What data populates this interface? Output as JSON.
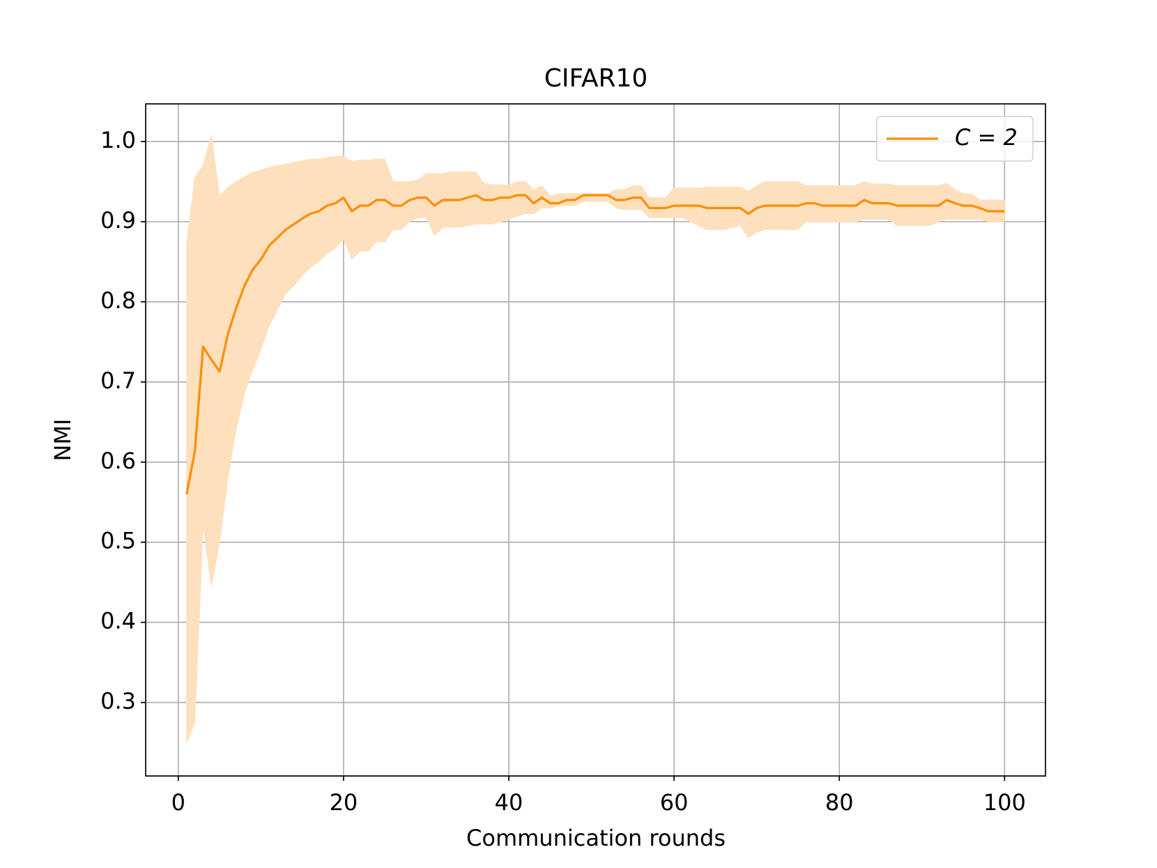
{
  "chart_data": {
    "type": "line",
    "title": "CIFAR10",
    "x_label": "Communication rounds",
    "y_label": "NMI",
    "x": [
      1,
      2,
      3,
      4,
      5,
      6,
      7,
      8,
      9,
      10,
      11,
      12,
      13,
      14,
      15,
      16,
      17,
      18,
      19,
      20,
      21,
      22,
      23,
      24,
      25,
      26,
      27,
      28,
      29,
      30,
      31,
      32,
      33,
      34,
      35,
      36,
      37,
      38,
      39,
      40,
      41,
      42,
      43,
      44,
      45,
      46,
      47,
      48,
      49,
      50,
      51,
      52,
      53,
      54,
      55,
      56,
      57,
      58,
      59,
      60,
      61,
      62,
      63,
      64,
      65,
      66,
      67,
      68,
      69,
      70,
      71,
      72,
      73,
      74,
      75,
      76,
      77,
      78,
      79,
      80,
      81,
      82,
      83,
      84,
      85,
      86,
      87,
      88,
      89,
      90,
      91,
      92,
      93,
      94,
      95,
      96,
      97,
      98,
      99,
      100
    ],
    "series": [
      {
        "name": "C = 2",
        "color": "#ff8c00",
        "band_color": "#ffe0bd",
        "values": [
          0.56,
          0.613,
          0.744,
          0.728,
          0.713,
          0.76,
          0.792,
          0.82,
          0.84,
          0.853,
          0.87,
          0.88,
          0.89,
          0.897,
          0.904,
          0.91,
          0.913,
          0.92,
          0.923,
          0.93,
          0.913,
          0.92,
          0.92,
          0.927,
          0.927,
          0.92,
          0.92,
          0.927,
          0.93,
          0.93,
          0.92,
          0.927,
          0.927,
          0.927,
          0.93,
          0.933,
          0.927,
          0.927,
          0.93,
          0.93,
          0.933,
          0.933,
          0.923,
          0.93,
          0.923,
          0.923,
          0.927,
          0.927,
          0.933,
          0.933,
          0.933,
          0.933,
          0.927,
          0.927,
          0.93,
          0.93,
          0.917,
          0.917,
          0.917,
          0.92,
          0.92,
          0.92,
          0.92,
          0.917,
          0.917,
          0.917,
          0.917,
          0.917,
          0.91,
          0.917,
          0.92,
          0.92,
          0.92,
          0.92,
          0.92,
          0.923,
          0.923,
          0.92,
          0.92,
          0.92,
          0.92,
          0.92,
          0.927,
          0.923,
          0.923,
          0.923,
          0.92,
          0.92,
          0.92,
          0.92,
          0.92,
          0.92,
          0.927,
          0.923,
          0.92,
          0.92,
          0.917,
          0.913,
          0.913,
          0.913
        ],
        "lower": [
          0.25,
          0.275,
          0.52,
          0.445,
          0.5,
          0.58,
          0.64,
          0.685,
          0.715,
          0.74,
          0.77,
          0.79,
          0.81,
          0.82,
          0.833,
          0.843,
          0.85,
          0.86,
          0.867,
          0.878,
          0.853,
          0.863,
          0.863,
          0.875,
          0.875,
          0.89,
          0.89,
          0.9,
          0.905,
          0.905,
          0.883,
          0.893,
          0.893,
          0.893,
          0.895,
          0.897,
          0.897,
          0.897,
          0.9,
          0.903,
          0.907,
          0.91,
          0.91,
          0.917,
          0.917,
          0.92,
          0.92,
          0.92,
          0.925,
          0.925,
          0.925,
          0.925,
          0.917,
          0.915,
          0.915,
          0.915,
          0.905,
          0.905,
          0.905,
          0.905,
          0.905,
          0.9,
          0.895,
          0.89,
          0.89,
          0.89,
          0.893,
          0.895,
          0.88,
          0.887,
          0.89,
          0.89,
          0.89,
          0.89,
          0.89,
          0.9,
          0.9,
          0.9,
          0.9,
          0.9,
          0.9,
          0.9,
          0.903,
          0.903,
          0.903,
          0.903,
          0.895,
          0.895,
          0.895,
          0.895,
          0.895,
          0.9,
          0.903,
          0.903,
          0.903,
          0.903,
          0.903,
          0.9,
          0.9,
          0.9
        ],
        "upper": [
          0.873,
          0.955,
          0.97,
          1.008,
          0.932,
          0.943,
          0.95,
          0.956,
          0.962,
          0.964,
          0.968,
          0.97,
          0.972,
          0.974,
          0.976,
          0.978,
          0.978,
          0.98,
          0.981,
          0.982,
          0.975,
          0.977,
          0.977,
          0.978,
          0.978,
          0.95,
          0.95,
          0.95,
          0.952,
          0.96,
          0.96,
          0.96,
          0.962,
          0.962,
          0.962,
          0.962,
          0.948,
          0.946,
          0.946,
          0.946,
          0.95,
          0.95,
          0.94,
          0.945,
          0.932,
          0.935,
          0.935,
          0.935,
          0.935,
          0.935,
          0.935,
          0.935,
          0.94,
          0.94,
          0.945,
          0.945,
          0.93,
          0.93,
          0.93,
          0.942,
          0.942,
          0.942,
          0.942,
          0.943,
          0.943,
          0.943,
          0.943,
          0.943,
          0.938,
          0.945,
          0.95,
          0.95,
          0.95,
          0.95,
          0.95,
          0.945,
          0.945,
          0.945,
          0.945,
          0.945,
          0.945,
          0.945,
          0.95,
          0.947,
          0.947,
          0.947,
          0.945,
          0.945,
          0.945,
          0.945,
          0.945,
          0.945,
          0.948,
          0.94,
          0.935,
          0.935,
          0.927,
          0.927,
          0.927,
          0.927
        ]
      }
    ],
    "xlim": [
      -3.95,
      104.95
    ],
    "ylim": [
      0.2083,
      1.047
    ],
    "xticks": [
      0,
      20,
      40,
      60,
      80,
      100
    ],
    "yticks": [
      0.3,
      0.4,
      0.5,
      0.6,
      0.7,
      0.8,
      0.9,
      {
        "value": 1,
        "label": "1.0"
      }
    ],
    "grid": true,
    "legend": "upper right"
  }
}
